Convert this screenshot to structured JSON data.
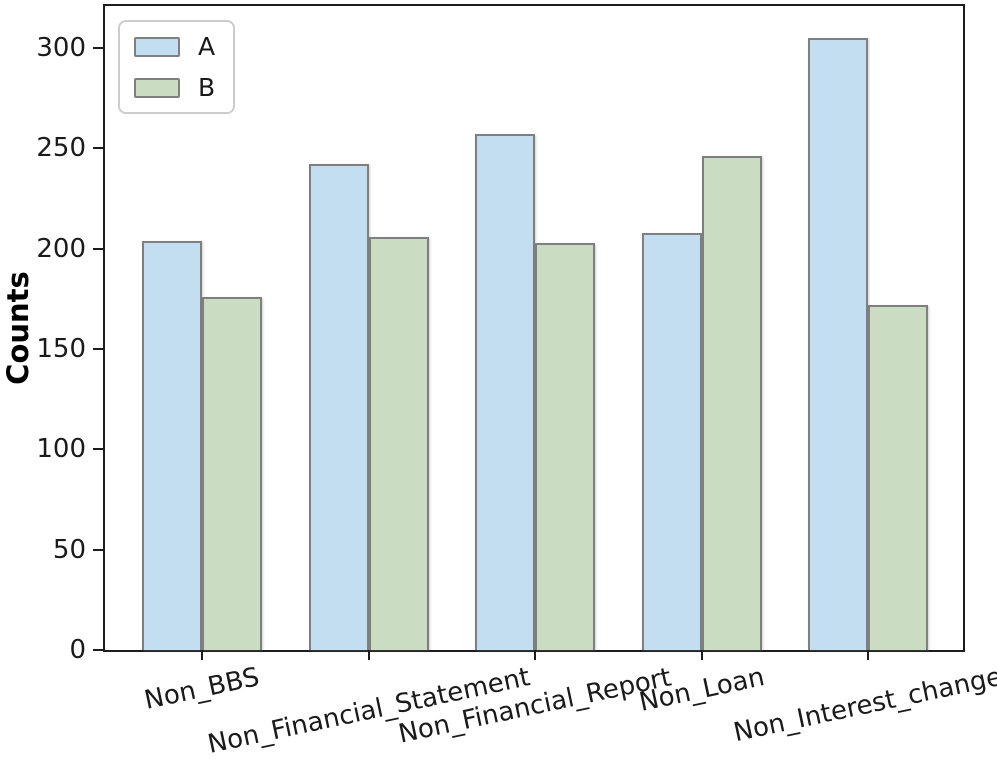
{
  "chart_data": {
    "type": "bar",
    "title": "",
    "xlabel": "",
    "ylabel": "Counts",
    "categories": [
      "Non_BBS",
      "Non_Financial_Statement",
      "Non_Financial_Report",
      "Non_Loan",
      "Non_Interest_change"
    ],
    "series": [
      {
        "name": "A",
        "color": "#c3ddf1",
        "values": [
          204,
          242,
          257,
          208,
          305
        ]
      },
      {
        "name": "B",
        "color": "#cadcc2",
        "values": [
          176,
          206,
          203,
          246,
          172
        ]
      }
    ],
    "yticks": [
      0,
      50,
      100,
      150,
      200,
      250,
      300
    ],
    "ylim": [
      0,
      321
    ],
    "grid": false,
    "bar_edge_color": "#7f7f7f",
    "legend": {
      "position": "upper-left",
      "entries": [
        "A",
        "B"
      ]
    },
    "x_label_rotation_deg": 12
  }
}
